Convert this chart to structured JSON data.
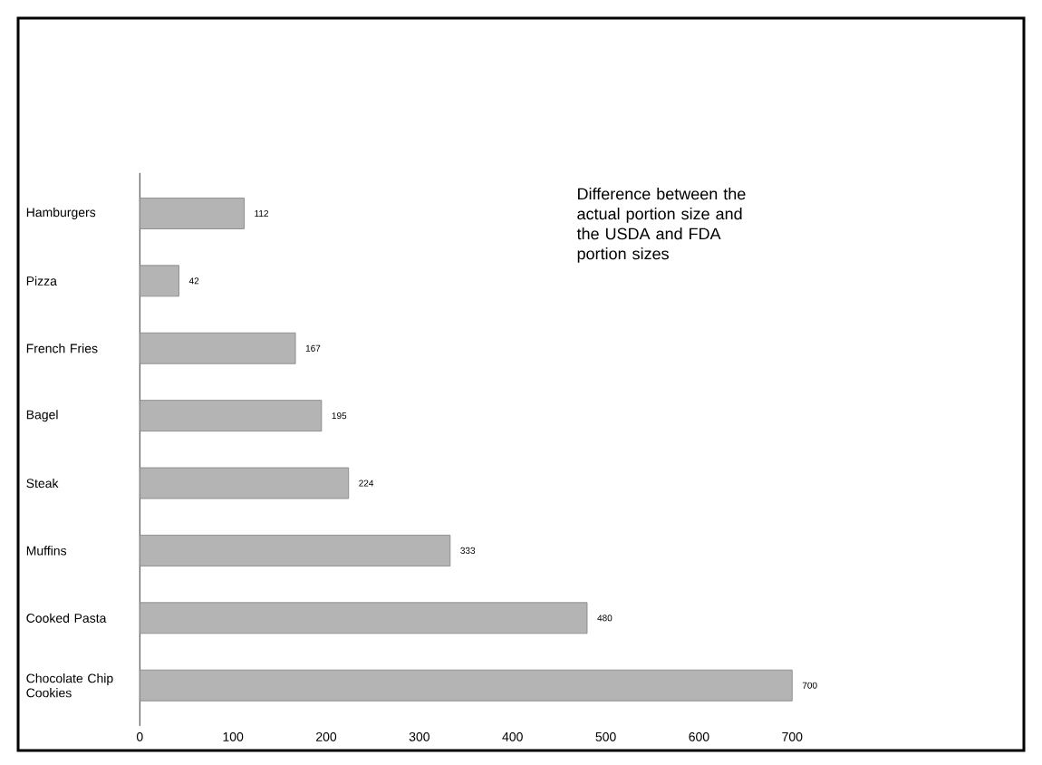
{
  "chart_data": {
    "type": "bar",
    "orientation": "horizontal",
    "categories": [
      "Hamburgers",
      "Pizza",
      "French Fries",
      "Bagel",
      "Steak",
      "Muffins",
      "Cooked Pasta",
      "Chocolate Chip Cookies"
    ],
    "values": [
      112,
      42,
      167,
      195,
      224,
      333,
      480,
      700
    ],
    "color": "#b4b4b4",
    "xlim": [
      0,
      700
    ],
    "xticks": [
      0,
      100,
      200,
      300,
      400,
      500,
      600,
      700
    ],
    "data_labels": true,
    "annotations": [
      "Difference between the actual portion size and the USDA and FDA portion sizes"
    ]
  }
}
